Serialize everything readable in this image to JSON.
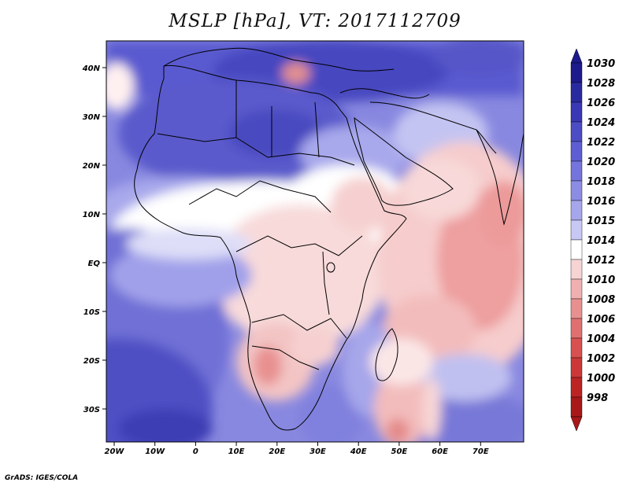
{
  "title": "MSLP [hPa], VT: 2017112709",
  "credit": "GrADS: IGES/COLA",
  "map": {
    "lon_labels": [
      "20W",
      "10W",
      "0",
      "10E",
      "20E",
      "30E",
      "40E",
      "50E",
      "60E",
      "70E"
    ],
    "lat_labels": [
      "40N",
      "30N",
      "20N",
      "10N",
      "EQ",
      "10S",
      "20S",
      "30S"
    ],
    "variable": "Mean sea level pressure",
    "units": "hPa"
  },
  "colorbar": {
    "levels": [
      "1030",
      "1028",
      "1026",
      "1024",
      "1022",
      "1020",
      "1018",
      "1016",
      "1015",
      "1014",
      "1012",
      "1010",
      "1008",
      "1006",
      "1004",
      "1002",
      "1000",
      "998"
    ],
    "colors": [
      "#1c1a8c",
      "#2a2aa0",
      "#3a38b4",
      "#4c4cc4",
      "#5e5ed2",
      "#7474dc",
      "#8c8ce4",
      "#a6a6ec",
      "#c8c8f4",
      "#ffffff",
      "#f7d4d4",
      "#f0b0b0",
      "#e89090",
      "#e07070",
      "#d85050",
      "#cc3838",
      "#bc2424",
      "#a81818"
    ],
    "top_cap": "#1c1a8c",
    "bottom_cap": "#a81818"
  }
}
